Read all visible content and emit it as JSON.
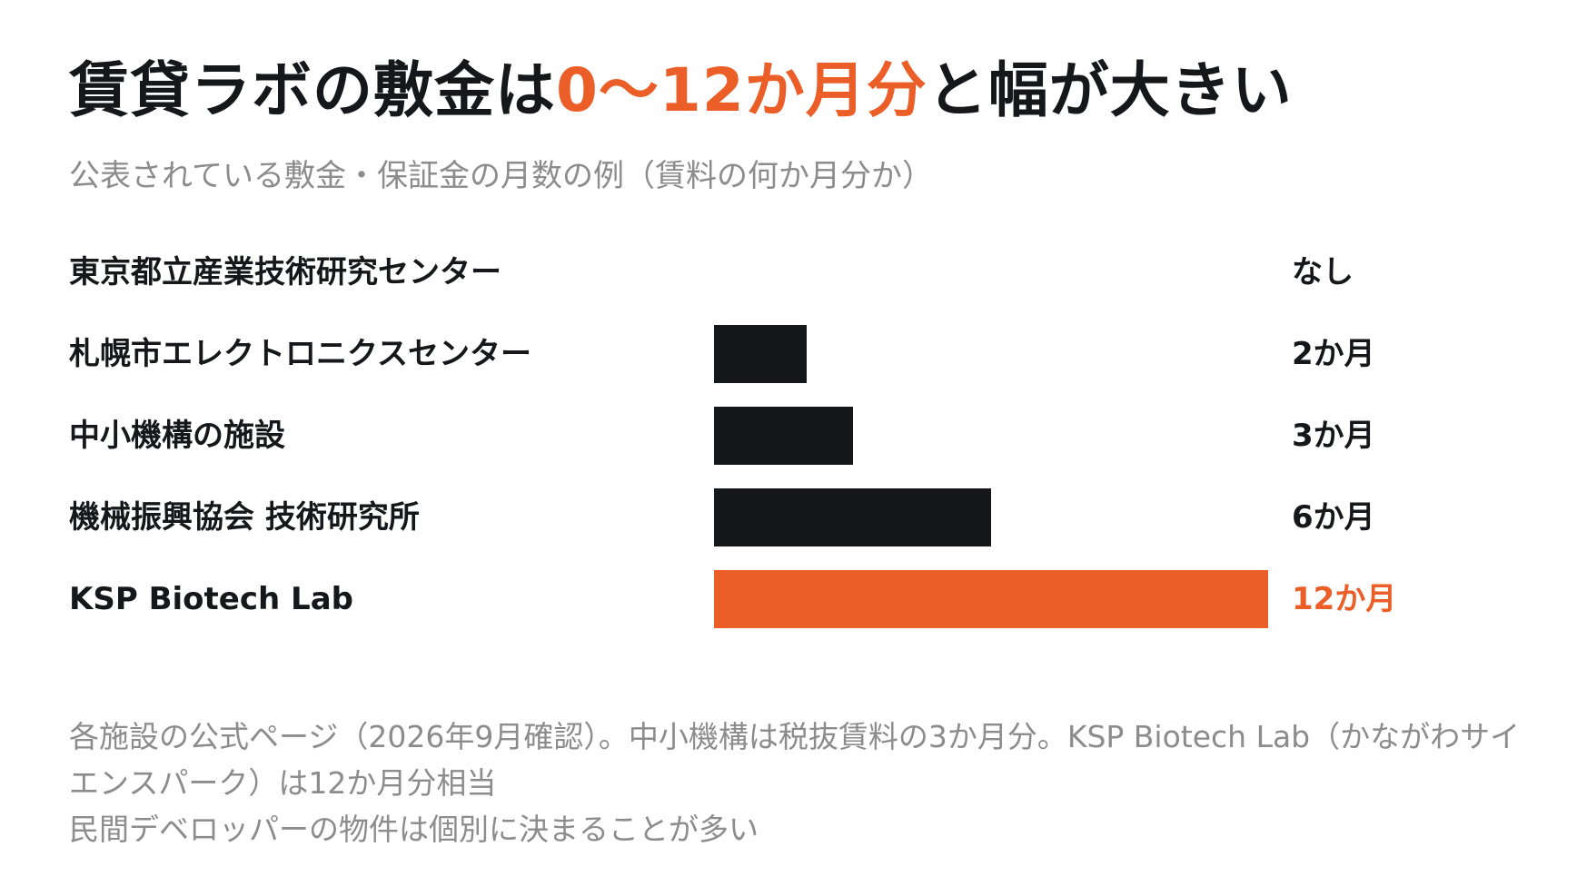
{
  "title": {
    "prefix": "賃貸ラボの敷金は",
    "highlight": "0〜12か月分",
    "suffix": "と幅が大きい"
  },
  "subtitle": "公表されている敷金・保証金の月数の例（賃料の何か月分か）",
  "colors": {
    "bar": "#16171a",
    "highlight": "#ec5e28",
    "muted": "#8c8c8c"
  },
  "chart_data": {
    "type": "bar",
    "orientation": "horizontal",
    "categories": [
      "東京都立産業技術研究センター",
      "札幌市エレクトロニクスセンター",
      "中小機構の施設",
      "機械振興協会 技術研究所",
      "KSP Biotech Lab"
    ],
    "values": [
      0,
      2,
      3,
      6,
      12
    ],
    "value_labels": [
      "なし",
      "2か月",
      "3か月",
      "6か月",
      "12か月"
    ],
    "highlight_index": 4,
    "xlim": [
      0,
      12
    ],
    "grid": false,
    "legend": "none"
  },
  "footnote": [
    "各施設の公式ページ（2026年9月確認）。中小機構は税抜賃料の3か月分。KSP Biotech Lab（かながわサイエンスパーク）は12か月分相当",
    "民間デベロッパーの物件は個別に決まることが多い"
  ]
}
